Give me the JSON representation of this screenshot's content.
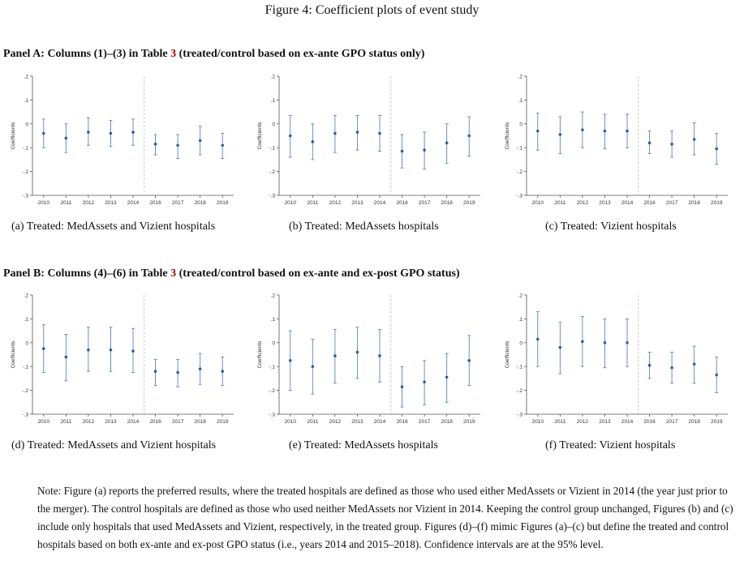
{
  "figure_title": "Figure 4: Coefficient plots of event study",
  "panels": [
    {
      "title_prefix": "Panel A: Columns (1)–(3) in Table",
      "title_ref": "3",
      "title_suffix": "(treated/control based on ex-ante GPO status only)"
    },
    {
      "title_prefix": "Panel B: Columns (4)–(6) in Table",
      "title_ref": "3",
      "title_suffix": "(treated/control based on ex-ante and ex-post GPO status)"
    }
  ],
  "captions": [
    "(a) Treated: MedAssets and Vizient hospitals",
    "(b) Treated: MedAssets hospitals",
    "(c) Treated: Vizient hospitals",
    "(d) Treated: MedAssets and Vizient hospitals",
    "(e) Treated: MedAssets hospitals",
    "(f) Treated: Vizient hospitals"
  ],
  "note": "Note: Figure (a) reports the preferred results, where the treated hospitals are defined as those who used either MedAssets or Vizient in 2014 (the year just prior to the merger). The control hospitals are defined as those who used neither MedAssets nor Vizient in 2014. Keeping the control group unchanged, Figures (b) and (c) include only hospitals that used MedAssets and Vizient, respectively, in the treated group. Figures (d)–(f) mimic Figures (a)–(c) but define the treated and control hospitals based on both ex-ante and ex-post GPO status (i.e., years 2014 and 2015–2018). Confidence intervals are at the 95% level.",
  "chart_data": [
    {
      "type": "scatter",
      "panel": "a",
      "ylabel": "Coefficients",
      "x": [
        "2010",
        "2011",
        "2012",
        "2013",
        "2014",
        "2016",
        "2017",
        "2018",
        "2019"
      ],
      "y": [
        -0.04,
        -0.06,
        -0.035,
        -0.04,
        -0.035,
        -0.085,
        -0.09,
        -0.07,
        -0.09
      ],
      "ci_low": [
        -0.1,
        -0.12,
        -0.09,
        -0.095,
        -0.09,
        -0.13,
        -0.145,
        -0.13,
        -0.145
      ],
      "ci_high": [
        0.02,
        0.0,
        0.025,
        0.015,
        0.02,
        -0.045,
        -0.045,
        -0.01,
        -0.04
      ],
      "ylim": [
        -0.3,
        0.2
      ],
      "yticks": [
        -0.3,
        -0.2,
        -0.1,
        0,
        0.1,
        0.2
      ],
      "ytick_labels": [
        "-.3",
        "-.2",
        "-.1",
        "0",
        ".1",
        ".2"
      ],
      "divider_after": "2014",
      "grid": false
    },
    {
      "type": "scatter",
      "panel": "b",
      "ylabel": "Coefficients",
      "x": [
        "2010",
        "2011",
        "2012",
        "2013",
        "2014",
        "2016",
        "2017",
        "2018",
        "2019"
      ],
      "y": [
        -0.05,
        -0.075,
        -0.04,
        -0.035,
        -0.04,
        -0.115,
        -0.11,
        -0.08,
        -0.05
      ],
      "ci_low": [
        -0.14,
        -0.15,
        -0.12,
        -0.11,
        -0.115,
        -0.185,
        -0.19,
        -0.165,
        -0.135
      ],
      "ci_high": [
        0.035,
        0.0,
        0.035,
        0.035,
        0.035,
        -0.045,
        -0.035,
        0.0,
        0.03
      ],
      "ylim": [
        -0.3,
        0.2
      ],
      "yticks": [
        -0.3,
        -0.2,
        -0.1,
        0,
        0.1,
        0.2
      ],
      "ytick_labels": [
        "-.3",
        "-.2",
        "-.1",
        "0",
        ".1",
        ".2"
      ],
      "divider_after": "2014",
      "grid": false
    },
    {
      "type": "scatter",
      "panel": "c",
      "ylabel": "Coefficients",
      "x": [
        "2010",
        "2011",
        "2012",
        "2013",
        "2014",
        "2016",
        "2017",
        "2018",
        "2019"
      ],
      "y": [
        -0.03,
        -0.045,
        -0.025,
        -0.03,
        -0.03,
        -0.08,
        -0.085,
        -0.065,
        -0.105
      ],
      "ci_low": [
        -0.11,
        -0.125,
        -0.1,
        -0.105,
        -0.1,
        -0.125,
        -0.14,
        -0.13,
        -0.17
      ],
      "ci_high": [
        0.045,
        0.03,
        0.05,
        0.04,
        0.04,
        -0.03,
        -0.03,
        0.005,
        -0.04
      ],
      "ylim": [
        -0.3,
        0.2
      ],
      "yticks": [
        -0.3,
        -0.2,
        -0.1,
        0,
        0.1,
        0.2
      ],
      "ytick_labels": [
        "-.3",
        "-.2",
        "-.1",
        "0",
        ".1",
        ".2"
      ],
      "divider_after": "2014",
      "grid": false
    },
    {
      "type": "scatter",
      "panel": "d",
      "ylabel": "Coefficients",
      "x": [
        "2010",
        "2011",
        "2012",
        "2013",
        "2014",
        "2016",
        "2017",
        "2018",
        "2019"
      ],
      "y": [
        -0.025,
        -0.06,
        -0.03,
        -0.03,
        -0.035,
        -0.12,
        -0.125,
        -0.11,
        -0.12
      ],
      "ci_low": [
        -0.125,
        -0.16,
        -0.12,
        -0.12,
        -0.125,
        -0.18,
        -0.185,
        -0.175,
        -0.18
      ],
      "ci_high": [
        0.075,
        0.035,
        0.065,
        0.065,
        0.06,
        -0.07,
        -0.07,
        -0.045,
        -0.06
      ],
      "ylim": [
        -0.3,
        0.2
      ],
      "yticks": [
        -0.3,
        -0.2,
        -0.1,
        0,
        0.1,
        0.2
      ],
      "ytick_labels": [
        "-.3",
        "-.2",
        "-.1",
        "0",
        ".1",
        ".2"
      ],
      "divider_after": "2014",
      "grid": false
    },
    {
      "type": "scatter",
      "panel": "e",
      "ylabel": "Coefficients",
      "x": [
        "2010",
        "2011",
        "2012",
        "2013",
        "2014",
        "2016",
        "2017",
        "2018",
        "2019"
      ],
      "y": [
        -0.075,
        -0.1,
        -0.055,
        -0.04,
        -0.055,
        -0.185,
        -0.165,
        -0.145,
        -0.075
      ],
      "ci_low": [
        -0.2,
        -0.215,
        -0.17,
        -0.15,
        -0.165,
        -0.27,
        -0.26,
        -0.25,
        -0.18
      ],
      "ci_high": [
        0.05,
        0.015,
        0.055,
        0.065,
        0.055,
        -0.1,
        -0.075,
        -0.045,
        0.03
      ],
      "ylim": [
        -0.3,
        0.2
      ],
      "yticks": [
        -0.3,
        -0.2,
        -0.1,
        0,
        0.1,
        0.2
      ],
      "ytick_labels": [
        "-.3",
        "-.2",
        "-.1",
        "0",
        ".1",
        ".2"
      ],
      "divider_after": "2014",
      "grid": false
    },
    {
      "type": "scatter",
      "panel": "f",
      "ylabel": "Coefficients",
      "x": [
        "2010",
        "2011",
        "2012",
        "2013",
        "2014",
        "2016",
        "2017",
        "2018",
        "2019"
      ],
      "y": [
        0.015,
        -0.02,
        0.005,
        0.0,
        0.0,
        -0.095,
        -0.105,
        -0.09,
        -0.135
      ],
      "ci_low": [
        -0.1,
        -0.13,
        -0.1,
        -0.105,
        -0.1,
        -0.15,
        -0.17,
        -0.17,
        -0.21
      ],
      "ci_high": [
        0.13,
        0.085,
        0.11,
        0.1,
        0.1,
        -0.04,
        -0.04,
        -0.015,
        -0.06
      ],
      "ylim": [
        -0.3,
        0.2
      ],
      "yticks": [
        -0.3,
        -0.2,
        -0.1,
        0,
        0.1,
        0.2
      ],
      "ytick_labels": [
        "-.3",
        "-.2",
        "-.1",
        "0",
        ".1",
        ".2"
      ],
      "divider_after": "2014",
      "grid": false
    }
  ],
  "colors": {
    "marker": "#2f5f9f",
    "whisker": "#5b86be",
    "axis": "#555555",
    "divider": "#bdbdbd",
    "ref_link": "#b00000"
  }
}
